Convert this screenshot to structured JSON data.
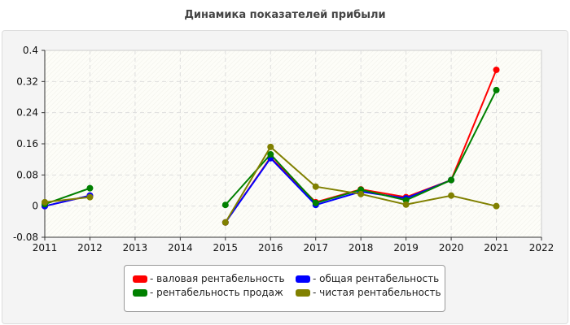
{
  "chart_data": {
    "type": "line",
    "title": "Динамика показателей прибыли",
    "xlabel": "",
    "ylabel": "",
    "xlim": [
      2011,
      2022
    ],
    "ylim": [
      -0.08,
      0.4
    ],
    "x_ticks": [
      "2011",
      "2012",
      "2013",
      "2014",
      "2015",
      "2016",
      "2017",
      "2018",
      "2019",
      "2020",
      "2021",
      "2022"
    ],
    "y_ticks": [
      "-0.08",
      "0",
      "0.08",
      "0.16",
      "0.24",
      "0.32",
      "0.4"
    ],
    "grid": true,
    "legend": "bottom",
    "x": [
      2011,
      2012,
      2013,
      2014,
      2015,
      2016,
      2017,
      2018,
      2019,
      2020,
      2021
    ],
    "series": [
      {
        "name": "- валовая рентабельность",
        "color": "#ff0000",
        "values": [
          0.0,
          0.027,
          null,
          null,
          -0.042,
          0.125,
          0.01,
          0.043,
          0.023,
          0.067,
          0.35
        ]
      },
      {
        "name": "- общая рентабельность",
        "color": "#0000ff",
        "values": [
          0.0,
          0.027,
          null,
          null,
          -0.042,
          0.123,
          0.003,
          0.037,
          0.02,
          0.067,
          null
        ]
      },
      {
        "name": "- рентабельность продаж",
        "color": "#008000",
        "values": [
          0.005,
          0.046,
          null,
          null,
          0.003,
          0.133,
          0.008,
          0.042,
          0.015,
          0.067,
          0.298
        ]
      },
      {
        "name": "- чистая рентабельность",
        "color": "#808000",
        "values": [
          0.01,
          0.023,
          null,
          null,
          -0.042,
          0.152,
          0.05,
          0.031,
          0.004,
          0.027,
          0.0
        ]
      }
    ]
  }
}
